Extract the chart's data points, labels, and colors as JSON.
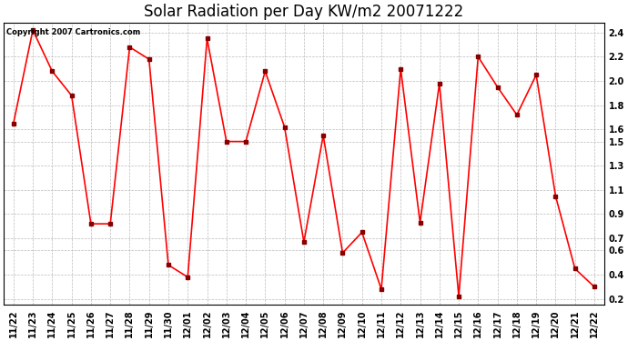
{
  "title": "Solar Radiation per Day KW/m2 20071222",
  "copyright_text": "Copyright 2007 Cartronics.com",
  "dates": [
    "11/22",
    "11/23",
    "11/24",
    "11/25",
    "11/26",
    "11/27",
    "11/28",
    "11/29",
    "11/30",
    "12/01",
    "12/02",
    "12/03",
    "12/04",
    "12/05",
    "12/06",
    "12/07",
    "12/08",
    "12/09",
    "12/10",
    "12/11",
    "12/12",
    "12/13",
    "12/14",
    "12/15",
    "12/16",
    "12/17",
    "12/18",
    "12/19",
    "12/20",
    "12/21",
    "12/22"
  ],
  "values": [
    1.65,
    2.42,
    2.08,
    1.88,
    0.82,
    0.82,
    2.28,
    2.18,
    0.48,
    0.38,
    2.35,
    1.5,
    1.5,
    2.08,
    1.62,
    0.67,
    1.55,
    0.58,
    0.75,
    0.28,
    2.1,
    0.83,
    1.98,
    0.22,
    2.2,
    1.95,
    1.72,
    2.05,
    1.05,
    0.45,
    0.3
  ],
  "line_color": "#ff0000",
  "marker_color": "#880000",
  "marker": "s",
  "marker_size": 2.5,
  "line_width": 1.2,
  "bg_color": "#ffffff",
  "grid_color": "#bbbbbb",
  "ylim": [
    0.15,
    2.48
  ],
  "ytick_values": [
    0.2,
    0.4,
    0.6,
    0.7,
    0.9,
    1.1,
    1.3,
    1.5,
    1.6,
    1.8,
    2.0,
    2.2,
    2.4
  ],
  "ytick_labels": [
    "0.2",
    "0.4",
    "0.6",
    "0.7",
    "0.9",
    "1.1",
    "1.3",
    "1.5",
    "1.6",
    "1.8",
    "2.0",
    "2.2",
    "2.4"
  ],
  "title_fontsize": 12,
  "tick_fontsize": 7,
  "copyright_fontsize": 6
}
